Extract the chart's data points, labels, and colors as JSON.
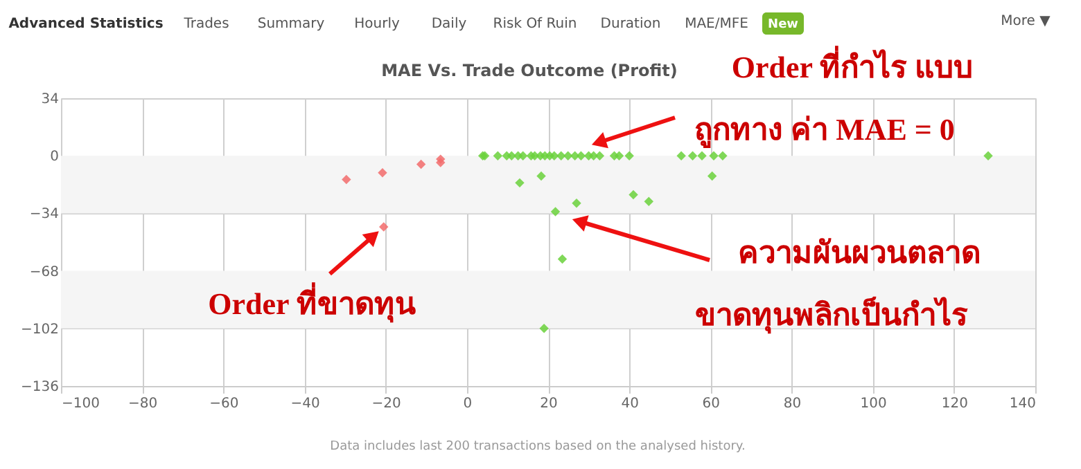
{
  "chart_data": {
    "type": "scatter",
    "title": "MAE Vs. Trade Outcome (Profit)",
    "series": [
      {
        "color": "#f26b6b",
        "x": [
          -29.7,
          -20.8,
          -11.3,
          -6.5,
          -6.5,
          -20.5
        ],
        "values": [
          -14,
          -10,
          -5,
          -4,
          -2,
          -42
        ]
      },
      {
        "color": "#6ad13b",
        "x": [
          3.9,
          4.4,
          7.6,
          9.8,
          11,
          12.6,
          13.8,
          15.8,
          16.7,
          18.1,
          19.2,
          20.4,
          21.5,
          23.2,
          24.9,
          26.6,
          28.1,
          30,
          31.2,
          32.7,
          36.3,
          37.5,
          40,
          52.8,
          55.6,
          57.9,
          60.8,
          63,
          128.4,
          13,
          18.3,
          60.4,
          41,
          44.8,
          21.8,
          27,
          23.5,
          19
        ],
        "values": [
          0,
          0,
          0,
          0,
          0,
          0,
          0,
          0,
          0,
          0,
          0,
          0,
          0,
          0,
          0,
          0,
          0,
          0,
          0,
          0,
          0,
          0,
          0,
          0,
          0,
          0,
          0,
          0,
          0,
          -16,
          -12,
          -12,
          -23,
          -27,
          -33,
          -28,
          -61,
          -102
        ]
      }
    ],
    "xlim": [
      -100,
      140
    ],
    "xticks": [
      -100,
      -80,
      -60,
      -40,
      -20,
      0,
      20,
      40,
      60,
      80,
      100,
      120,
      140
    ],
    "ylim": [
      -136,
      34
    ],
    "yticks": [
      -136,
      -102,
      -68,
      -34,
      0,
      34
    ],
    "bands": [
      {
        "axis": "y",
        "from": -34,
        "to": 0,
        "color": "#f5f5f5"
      },
      {
        "axis": "y",
        "from": -102,
        "to": -68,
        "color": "#f5f5f5"
      }
    ],
    "grid": true,
    "marker": "diamond",
    "annotations": [
      "Advanced Statistics",
      "Trades",
      "Summary",
      "Hourly",
      "Daily",
      "Risk Of Ruin",
      "Duration",
      "MAE/MFE",
      "New",
      "More ▼",
      "Order ที่กำไร แบบ",
      "ถูกทาง ค่า MAE = 0",
      "ความผันผวนตลาด",
      "ขาดทุนพลิกเป็นกำไร",
      {
        "text": "Order ที่ขาดทุน",
        "x": -20.5,
        "y": -42
      },
      "Data includes last 200 transactions based on the analysed history."
    ]
  }
}
